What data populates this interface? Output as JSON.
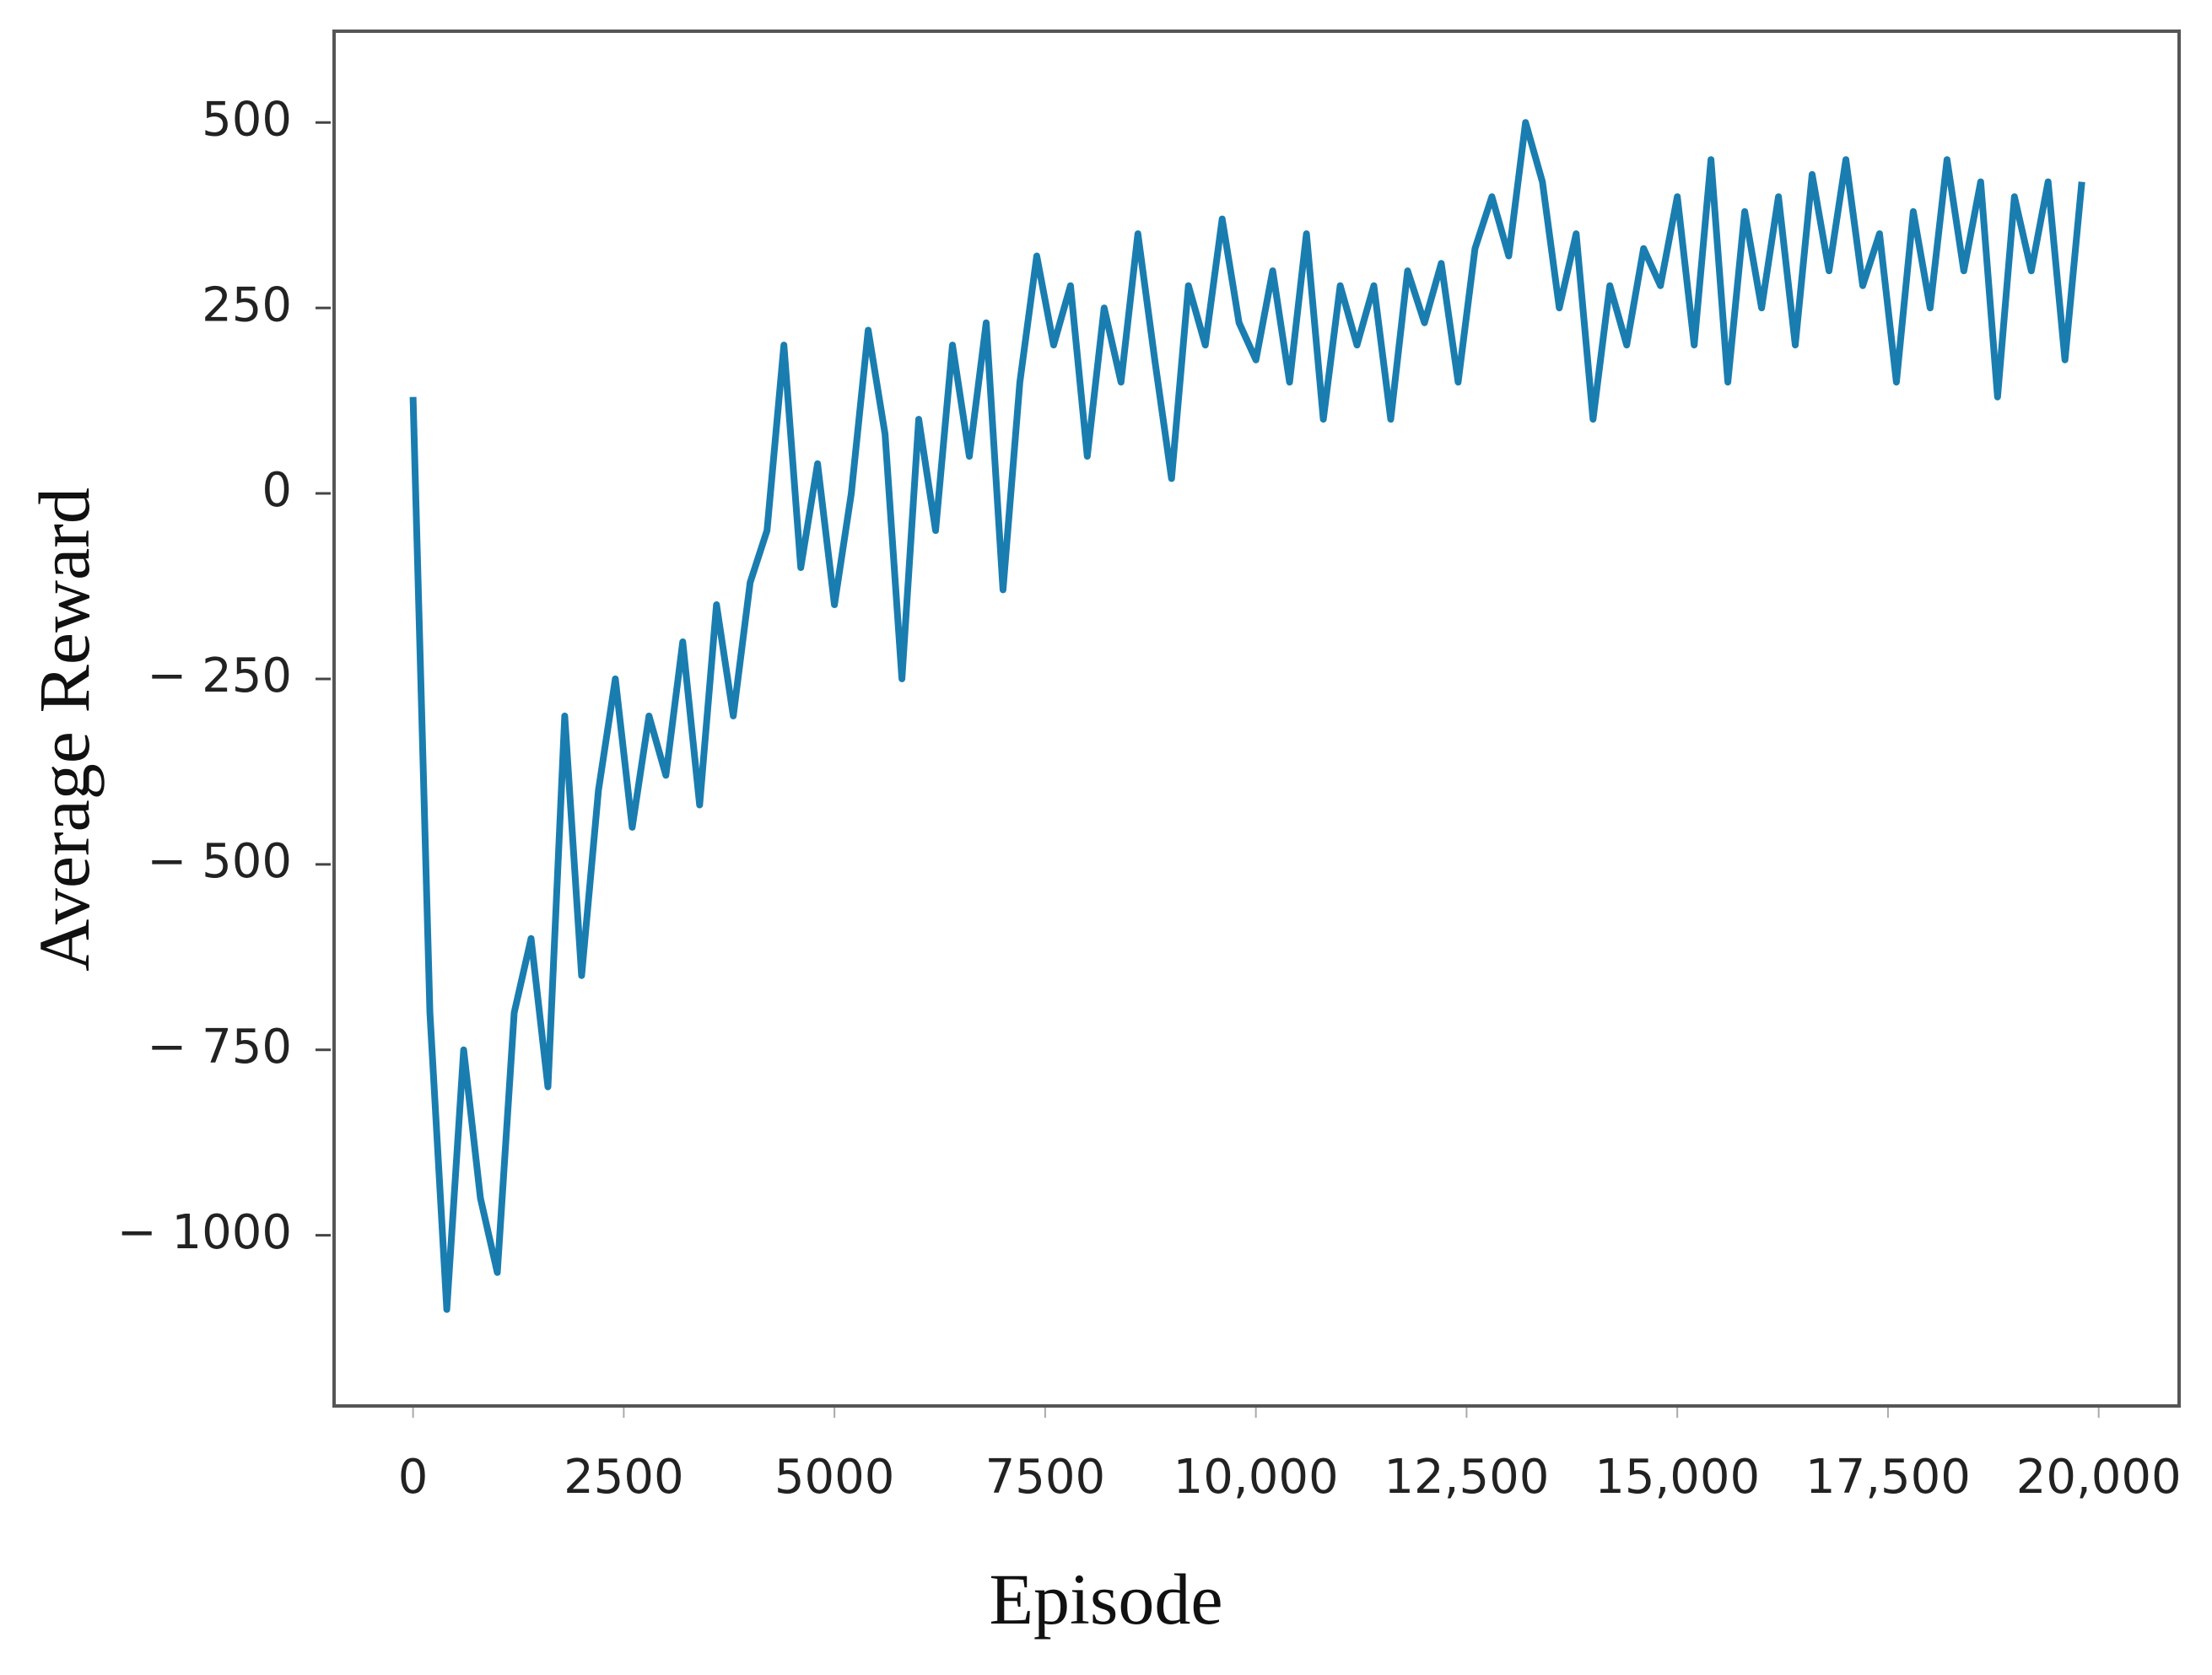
{
  "chart_data": {
    "type": "line",
    "x_label": "Episode",
    "y_label": "Average Reward",
    "color": "#1a7db0",
    "xlim": [
      -937,
      20954
    ],
    "ylim": [
      -1230,
      623
    ],
    "xticks": [
      0,
      2500,
      5000,
      7500,
      {
        "value": 10000,
        "label": "10,000"
      },
      {
        "value": 12500,
        "label": "12,500"
      },
      {
        "value": 15000,
        "label": "15,000"
      },
      {
        "value": 17500,
        "label": "17,500"
      },
      {
        "value": 20000,
        "label": "20,000"
      }
    ],
    "yticks": [
      500,
      250,
      0,
      {
        "value": -250,
        "label": "− 250"
      },
      {
        "value": -500,
        "label": "− 500"
      },
      {
        "value": -750,
        "label": "− 750"
      },
      {
        "value": -1000,
        "label": "− 1000"
      }
    ],
    "x": [
      0,
      200,
      400,
      600,
      800,
      1000,
      1200,
      1400,
      1600,
      1800,
      2000,
      2200,
      2400,
      2600,
      2800,
      3000,
      3200,
      3400,
      3600,
      3800,
      4000,
      4200,
      4400,
      4600,
      4800,
      5000,
      5200,
      5400,
      5600,
      5800,
      6000,
      6200,
      6400,
      6600,
      6800,
      7000,
      7200,
      7400,
      7600,
      7800,
      8000,
      8200,
      8400,
      8600,
      8800,
      9000,
      9200,
      9400,
      9600,
      9800,
      10000,
      10200,
      10400,
      10600,
      10800,
      11000,
      11200,
      11400,
      11600,
      11800,
      12000,
      12200,
      12400,
      12600,
      12800,
      13000,
      13200,
      13400,
      13600,
      13800,
      14000,
      14200,
      14400,
      14600,
      14800,
      15000,
      15200,
      15400,
      15600,
      15800,
      16000,
      16200,
      16400,
      16600,
      16800,
      17000,
      17200,
      17400,
      17600,
      17800,
      18000,
      18200,
      18400,
      18600,
      18800,
      19000,
      19200,
      19400,
      19600,
      19800
    ],
    "values": [
      130,
      -700,
      -1100,
      -750,
      -950,
      -1050,
      -700,
      -600,
      -800,
      -300,
      -650,
      -400,
      -250,
      -450,
      -300,
      -380,
      -200,
      -420,
      -150,
      -300,
      -120,
      -50,
      200,
      -100,
      40,
      -150,
      0,
      220,
      80,
      -250,
      100,
      -50,
      200,
      50,
      230,
      -130,
      150,
      320,
      200,
      280,
      50,
      250,
      150,
      350,
      180,
      20,
      280,
      200,
      370,
      230,
      180,
      300,
      150,
      350,
      100,
      280,
      200,
      280,
      100,
      300,
      230,
      310,
      150,
      330,
      400,
      320,
      500,
      420,
      250,
      350,
      100,
      280,
      200,
      330,
      280,
      400,
      200,
      450,
      150,
      380,
      250,
      400,
      200,
      430,
      300,
      450,
      280,
      350,
      150,
      380,
      250,
      450,
      300,
      420,
      130,
      400,
      300,
      420,
      180,
      420
    ]
  }
}
